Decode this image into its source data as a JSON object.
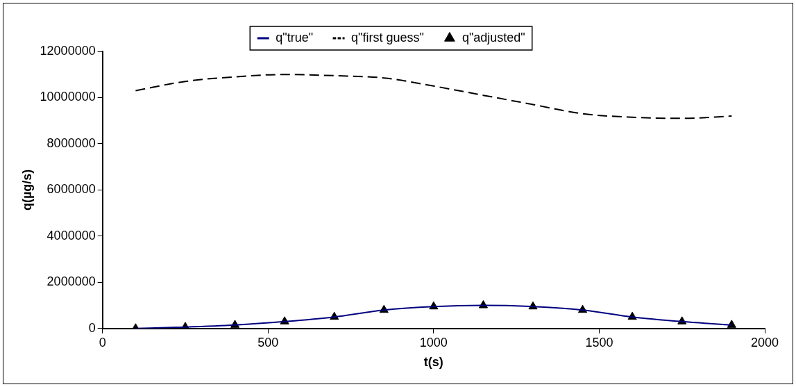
{
  "chart_data": {
    "type": "line",
    "xlabel": "t(s)",
    "ylabel": "q(µg/s)",
    "xlim": [
      0,
      2000
    ],
    "xticks": [
      0,
      500,
      1000,
      1500,
      2000
    ],
    "ylim": [
      0,
      12000000
    ],
    "yticks": [
      0,
      2000000,
      4000000,
      6000000,
      8000000,
      10000000,
      12000000
    ],
    "grid": false,
    "legend": "top",
    "series": [
      {
        "name": "q\"true\"",
        "type": "line",
        "color": "#000080",
        "marker": "none",
        "line_style": "solid",
        "x": [
          100,
          250,
          400,
          550,
          700,
          850,
          1000,
          1150,
          1300,
          1450,
          1600,
          1750,
          1900
        ],
        "values": [
          0,
          60000,
          150000,
          300000,
          500000,
          800000,
          950000,
          1000000,
          950000,
          800000,
          500000,
          300000,
          150000
        ]
      },
      {
        "name": "q\"first guess\"",
        "type": "line",
        "color": "#000000",
        "marker": "none",
        "line_style": "dashed",
        "x": [
          100,
          250,
          400,
          550,
          700,
          850,
          1000,
          1150,
          1300,
          1450,
          1600,
          1750,
          1900
        ],
        "values": [
          10300000,
          10700000,
          10900000,
          11000000,
          10950000,
          10850000,
          10500000,
          10100000,
          9700000,
          9300000,
          9150000,
          9100000,
          9200000
        ]
      },
      {
        "name": "q\"adjusted\"",
        "type": "scatter",
        "color": "#000000",
        "marker": "triangle",
        "x": [
          100,
          250,
          400,
          550,
          700,
          850,
          1000,
          1150,
          1300,
          1450,
          1600,
          1750,
          1900
        ],
        "values": [
          0,
          60000,
          150000,
          300000,
          500000,
          800000,
          950000,
          1000000,
          950000,
          800000,
          500000,
          300000,
          150000
        ]
      }
    ]
  }
}
